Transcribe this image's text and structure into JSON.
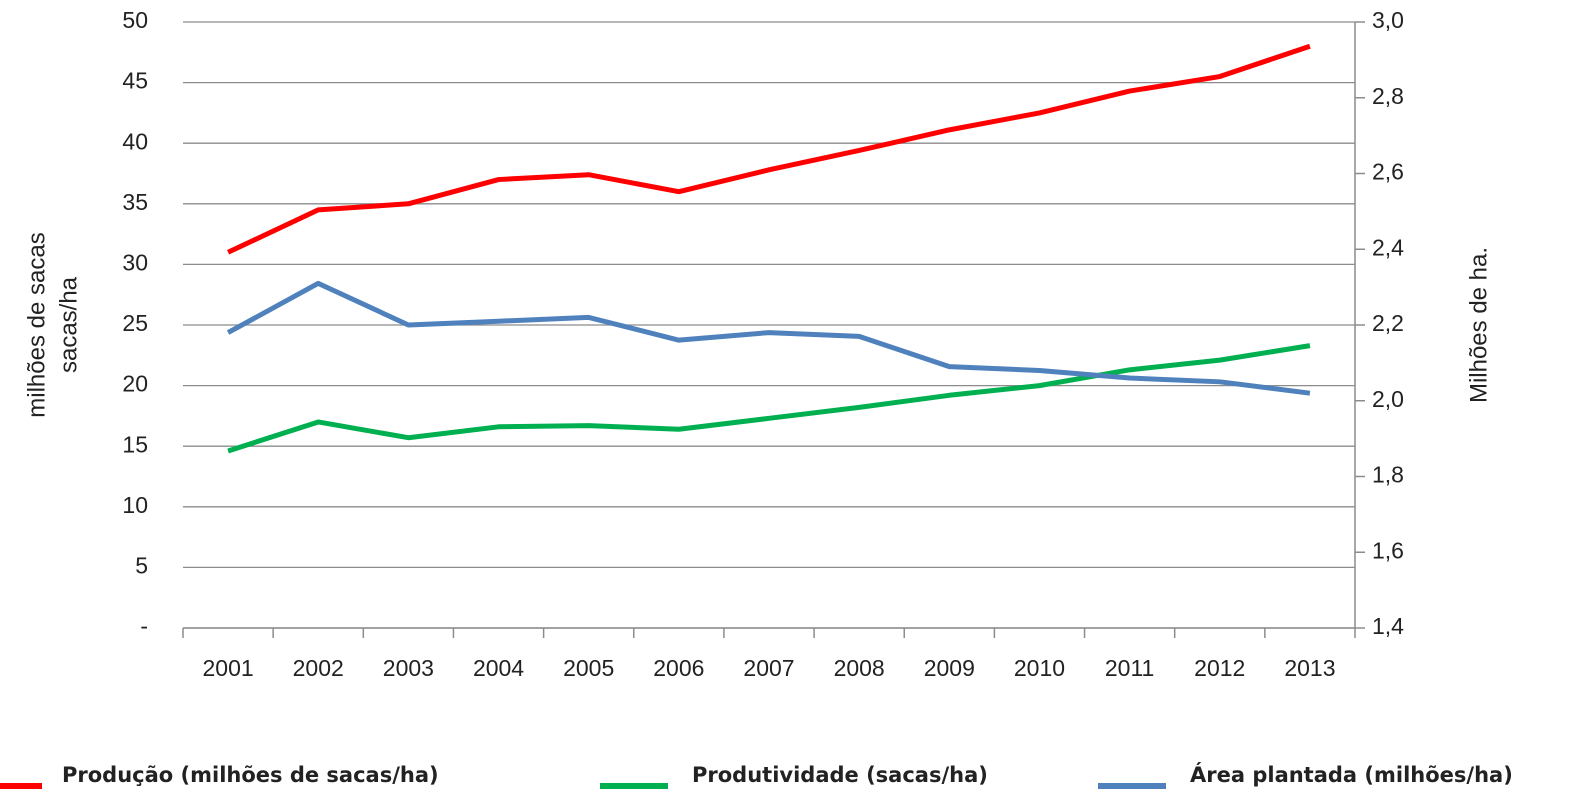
{
  "chart_data": {
    "type": "line",
    "y_label": [
      "milhões de sacas",
      "sacas/ha"
    ],
    "y2_label": "Milhões de ha.",
    "categories": [
      "2001",
      "2002",
      "2003",
      "2004",
      "2005",
      "2006",
      "2007",
      "2008",
      "2009",
      "2010",
      "2011",
      "2012",
      "2013"
    ],
    "series": [
      {
        "name": "Produção (milhões de sacas/ha)",
        "color": "#ff0000",
        "values": [
          31.0,
          34.5,
          35.0,
          37.0,
          37.4,
          36.0,
          37.8,
          39.4,
          41.1,
          42.5,
          44.3,
          45.5,
          48.0
        ]
      },
      {
        "name": "Produtividade (sacas/ha)",
        "color": "#00b050",
        "values": [
          14.6,
          17.0,
          15.7,
          16.6,
          16.7,
          16.4,
          17.3,
          18.2,
          19.2,
          20.0,
          21.3,
          22.1,
          23.3
        ]
      },
      {
        "name": "Área plantada (milhões/ha)",
        "color": "#4f81bd",
        "axis": "y2",
        "values": [
          2.18,
          2.31,
          2.2,
          2.21,
          2.22,
          2.16,
          2.18,
          2.17,
          2.09,
          2.08,
          2.06,
          2.05,
          2.02
        ]
      }
    ],
    "ylim": [
      0,
      50
    ],
    "yticks": [
      {
        "value": 0,
        "label": "-"
      },
      5,
      10,
      15,
      20,
      25,
      30,
      35,
      40,
      45,
      50
    ],
    "y2lim": [
      1.4,
      3.0
    ],
    "y2ticks": [
      {
        "value": 1.4,
        "label": "1,4"
      },
      {
        "value": 1.6,
        "label": "1,6"
      },
      {
        "value": 1.8,
        "label": "1,8"
      },
      {
        "value": 2.0,
        "label": "2,0"
      },
      {
        "value": 2.2,
        "label": "2,2"
      },
      {
        "value": 2.4,
        "label": "2,4"
      },
      {
        "value": 2.6,
        "label": "2,6"
      },
      {
        "value": 2.8,
        "label": "2,8"
      },
      {
        "value": 3.0,
        "label": "3,0"
      }
    ],
    "grid": true,
    "legend": "bottom"
  }
}
